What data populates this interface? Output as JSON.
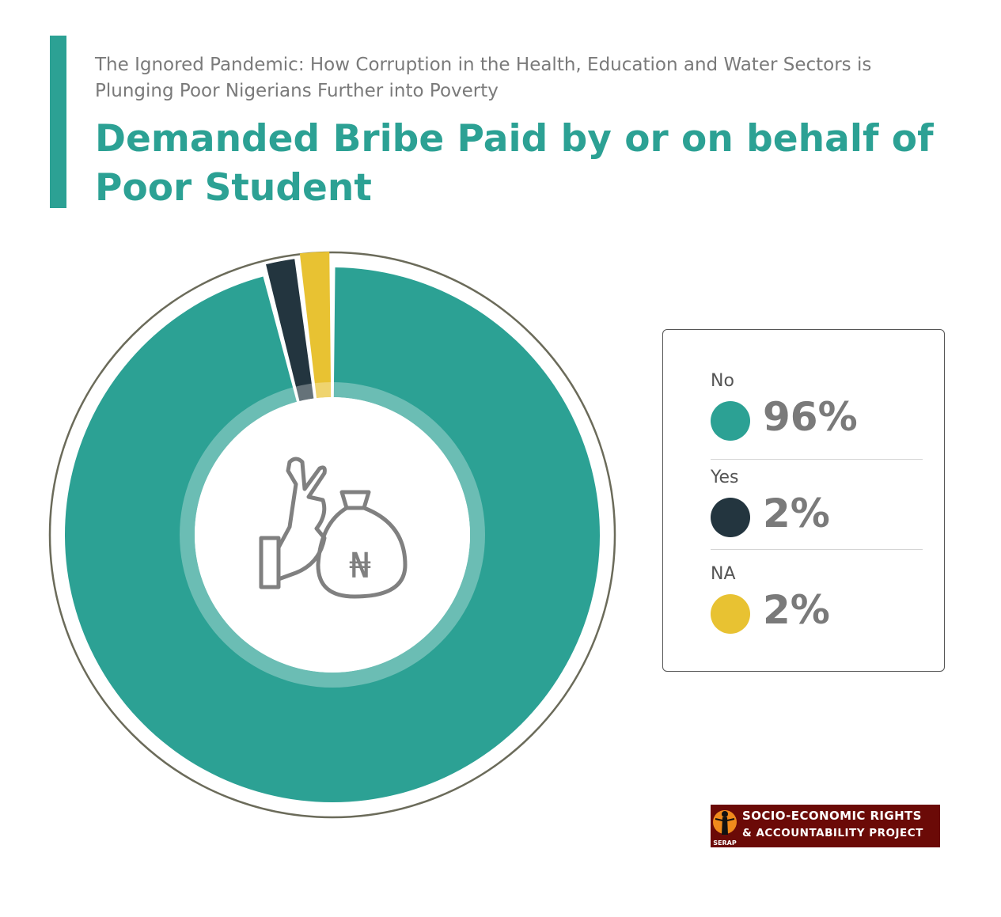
{
  "header": {
    "subtitle": "The Ignored Pandemic: How Corruption in the Health, Education and Water Sectors is Plunging Poor Nigerians Further into Poverty",
    "title": "Demanded Bribe Paid by or on behalf of Poor Student"
  },
  "chart_data": {
    "type": "pie",
    "title": "Demanded Bribe Paid by or on behalf of Poor Student",
    "categories": [
      "No",
      "Yes",
      "NA"
    ],
    "values": [
      96,
      2,
      2
    ],
    "value_labels": [
      "96%",
      "2%",
      "2%"
    ],
    "colors": [
      "#2ca194",
      "#23353f",
      "#e8c232"
    ],
    "legend_position": "right",
    "center_icon": "hand-refusing-money-bag-icon"
  },
  "legend": {
    "items": [
      {
        "label": "No",
        "value": "96%",
        "color": "#2ca194"
      },
      {
        "label": "Yes",
        "value": "2%",
        "color": "#23353f"
      },
      {
        "label": "NA",
        "value": "2%",
        "color": "#e8c232"
      }
    ]
  },
  "logo": {
    "line1": "SOCIO-ECONOMIC RIGHTS",
    "line2": "& ACCOUNTABILITY PROJECT",
    "abbr": "SERAP",
    "bg_color": "#6b0a07"
  },
  "icons": {
    "center": "hand-refusing-money-bag-icon",
    "currency": "₦"
  }
}
